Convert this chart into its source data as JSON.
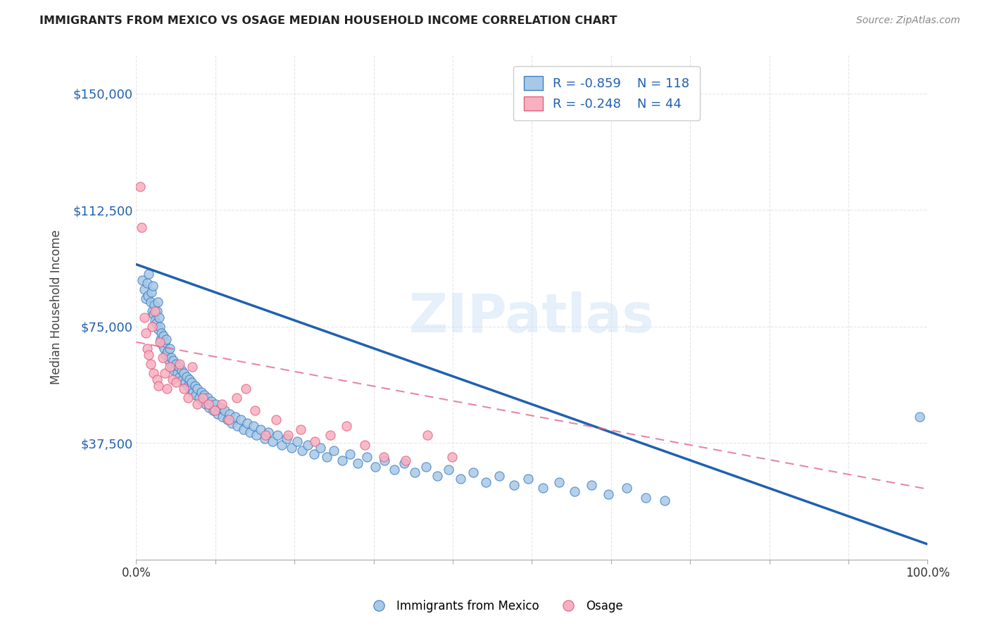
{
  "title": "IMMIGRANTS FROM MEXICO VS OSAGE MEDIAN HOUSEHOLD INCOME CORRELATION CHART",
  "source": "Source: ZipAtlas.com",
  "ylabel": "Median Household Income",
  "yticks": [
    0,
    37500,
    75000,
    112500,
    150000
  ],
  "ytick_labels": [
    "",
    "$37,500",
    "$75,000",
    "$112,500",
    "$150,000"
  ],
  "xlim": [
    0.0,
    1.0
  ],
  "ylim": [
    0,
    162500
  ],
  "watermark": "ZIPatlas",
  "legend_blue_r": "R = -0.859",
  "legend_blue_n": "N = 118",
  "legend_pink_r": "R = -0.248",
  "legend_pink_n": "N = 44",
  "blue_color": "#a8c8e8",
  "blue_edge_color": "#4080c0",
  "blue_line_color": "#2060b0",
  "pink_color": "#f8b0c0",
  "pink_edge_color": "#e06080",
  "pink_line_color": "#e06080",
  "blue_scatter_x": [
    0.008,
    0.01,
    0.012,
    0.014,
    0.015,
    0.016,
    0.018,
    0.019,
    0.02,
    0.021,
    0.022,
    0.023,
    0.024,
    0.025,
    0.026,
    0.027,
    0.028,
    0.029,
    0.03,
    0.031,
    0.032,
    0.033,
    0.034,
    0.035,
    0.036,
    0.037,
    0.038,
    0.04,
    0.041,
    0.042,
    0.044,
    0.045,
    0.047,
    0.048,
    0.05,
    0.052,
    0.054,
    0.055,
    0.057,
    0.058,
    0.06,
    0.062,
    0.064,
    0.065,
    0.067,
    0.068,
    0.07,
    0.072,
    0.074,
    0.075,
    0.077,
    0.08,
    0.082,
    0.084,
    0.086,
    0.088,
    0.09,
    0.092,
    0.095,
    0.097,
    0.1,
    0.103,
    0.106,
    0.109,
    0.112,
    0.115,
    0.118,
    0.121,
    0.125,
    0.128,
    0.132,
    0.136,
    0.14,
    0.144,
    0.148,
    0.152,
    0.157,
    0.162,
    0.167,
    0.172,
    0.178,
    0.184,
    0.19,
    0.196,
    0.203,
    0.21,
    0.217,
    0.225,
    0.233,
    0.241,
    0.25,
    0.26,
    0.27,
    0.28,
    0.291,
    0.302,
    0.314,
    0.326,
    0.339,
    0.352,
    0.366,
    0.38,
    0.395,
    0.41,
    0.426,
    0.442,
    0.459,
    0.477,
    0.495,
    0.514,
    0.534,
    0.554,
    0.575,
    0.597,
    0.62,
    0.644,
    0.668,
    0.99
  ],
  "blue_scatter_y": [
    90000,
    87000,
    84000,
    89000,
    85000,
    92000,
    83000,
    86000,
    80000,
    88000,
    79000,
    82000,
    77000,
    76000,
    80000,
    83000,
    74000,
    78000,
    75000,
    71000,
    73000,
    69000,
    72000,
    68000,
    70000,
    66000,
    71000,
    67000,
    64000,
    68000,
    65000,
    62000,
    64000,
    61000,
    63000,
    60000,
    62000,
    59000,
    61000,
    58000,
    60000,
    57000,
    59000,
    56000,
    58000,
    55000,
    57000,
    54000,
    56000,
    53000,
    55000,
    52000,
    54000,
    51000,
    53000,
    50000,
    52000,
    49000,
    51000,
    48000,
    50000,
    47000,
    49000,
    46000,
    48000,
    45000,
    47000,
    44000,
    46000,
    43000,
    45000,
    42000,
    44000,
    41000,
    43000,
    40000,
    42000,
    39000,
    41000,
    38000,
    40000,
    37000,
    39000,
    36000,
    38000,
    35000,
    37000,
    34000,
    36000,
    33000,
    35000,
    32000,
    34000,
    31000,
    33000,
    30000,
    32000,
    29000,
    31000,
    28000,
    30000,
    27000,
    29000,
    26000,
    28000,
    25000,
    27000,
    24000,
    26000,
    23000,
    25000,
    22000,
    24000,
    21000,
    23000,
    20000,
    19000,
    46000
  ],
  "pink_scatter_x": [
    0.005,
    0.007,
    0.01,
    0.012,
    0.014,
    0.016,
    0.018,
    0.02,
    0.022,
    0.024,
    0.026,
    0.028,
    0.03,
    0.033,
    0.036,
    0.039,
    0.042,
    0.046,
    0.05,
    0.055,
    0.06,
    0.065,
    0.071,
    0.077,
    0.084,
    0.091,
    0.099,
    0.108,
    0.117,
    0.127,
    0.138,
    0.15,
    0.163,
    0.177,
    0.192,
    0.208,
    0.226,
    0.245,
    0.266,
    0.289,
    0.313,
    0.34,
    0.368,
    0.399
  ],
  "pink_scatter_y": [
    120000,
    107000,
    78000,
    73000,
    68000,
    66000,
    63000,
    75000,
    60000,
    80000,
    58000,
    56000,
    70000,
    65000,
    60000,
    55000,
    62000,
    58000,
    57000,
    63000,
    55000,
    52000,
    62000,
    50000,
    52000,
    50000,
    48000,
    50000,
    45000,
    52000,
    55000,
    48000,
    40000,
    45000,
    40000,
    42000,
    38000,
    40000,
    43000,
    37000,
    33000,
    32000,
    40000,
    33000
  ],
  "background_color": "#ffffff",
  "grid_color": "#e0e0e0"
}
